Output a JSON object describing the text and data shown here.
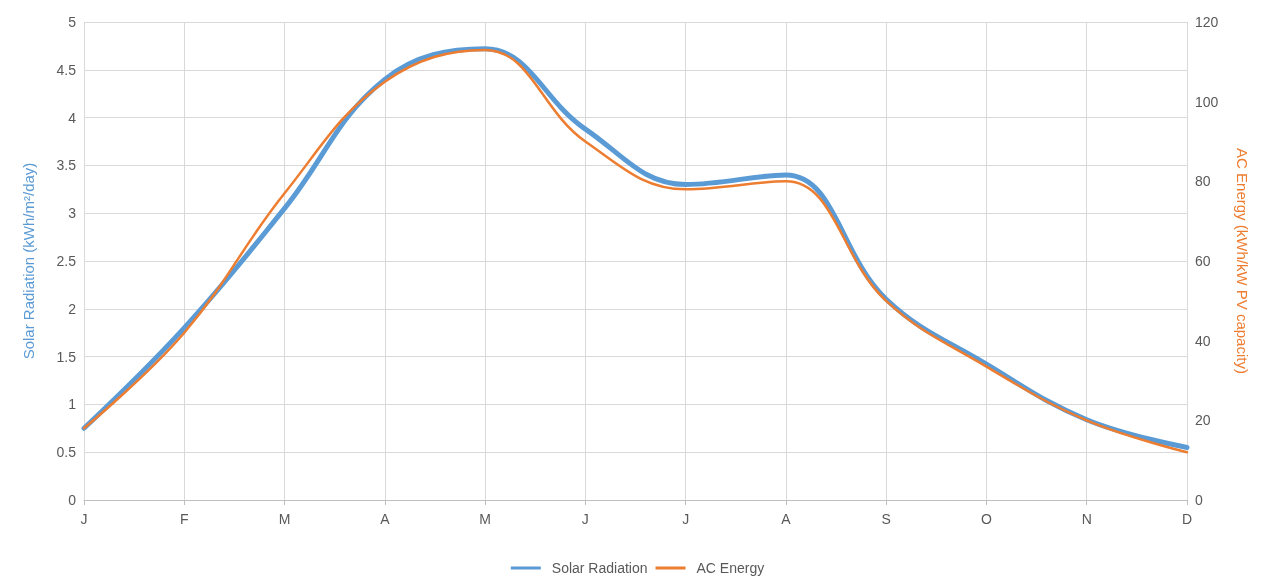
{
  "chart_data": {
    "type": "line",
    "categories": [
      "J",
      "F",
      "M",
      "A",
      "M",
      "J",
      "J",
      "A",
      "S",
      "O",
      "N",
      "D"
    ],
    "ylabel": "Solar Radiation (kWh/m²/day)",
    "y2label": "AC Energy (kWh/kW PV capacity)",
    "ylim": [
      0,
      5
    ],
    "yticks": [
      0,
      0.5,
      1,
      1.5,
      2,
      2.5,
      3,
      3.5,
      4,
      4.5,
      5
    ],
    "y2lim": [
      0,
      120
    ],
    "y2ticks": [
      0,
      20,
      40,
      60,
      80,
      100,
      120
    ],
    "grid": true,
    "legend": "bottom",
    "marker": "none",
    "line_style": "solid",
    "series": [
      {
        "name": "Solar Radiation",
        "color": "#5b9bd5",
        "values": [
          0.75,
          1.8,
          3.05,
          4.4,
          4.72,
          3.88,
          3.3,
          3.4,
          2.1,
          1.42,
          0.84,
          0.55
        ]
      },
      {
        "name": "AC Energy",
        "color": "#ed7d31",
        "axis": "y2",
        "values": [
          18,
          42,
          77,
          105,
          113,
          90,
          78,
          80,
          50,
          33.5,
          20,
          12
        ]
      }
    ]
  }
}
